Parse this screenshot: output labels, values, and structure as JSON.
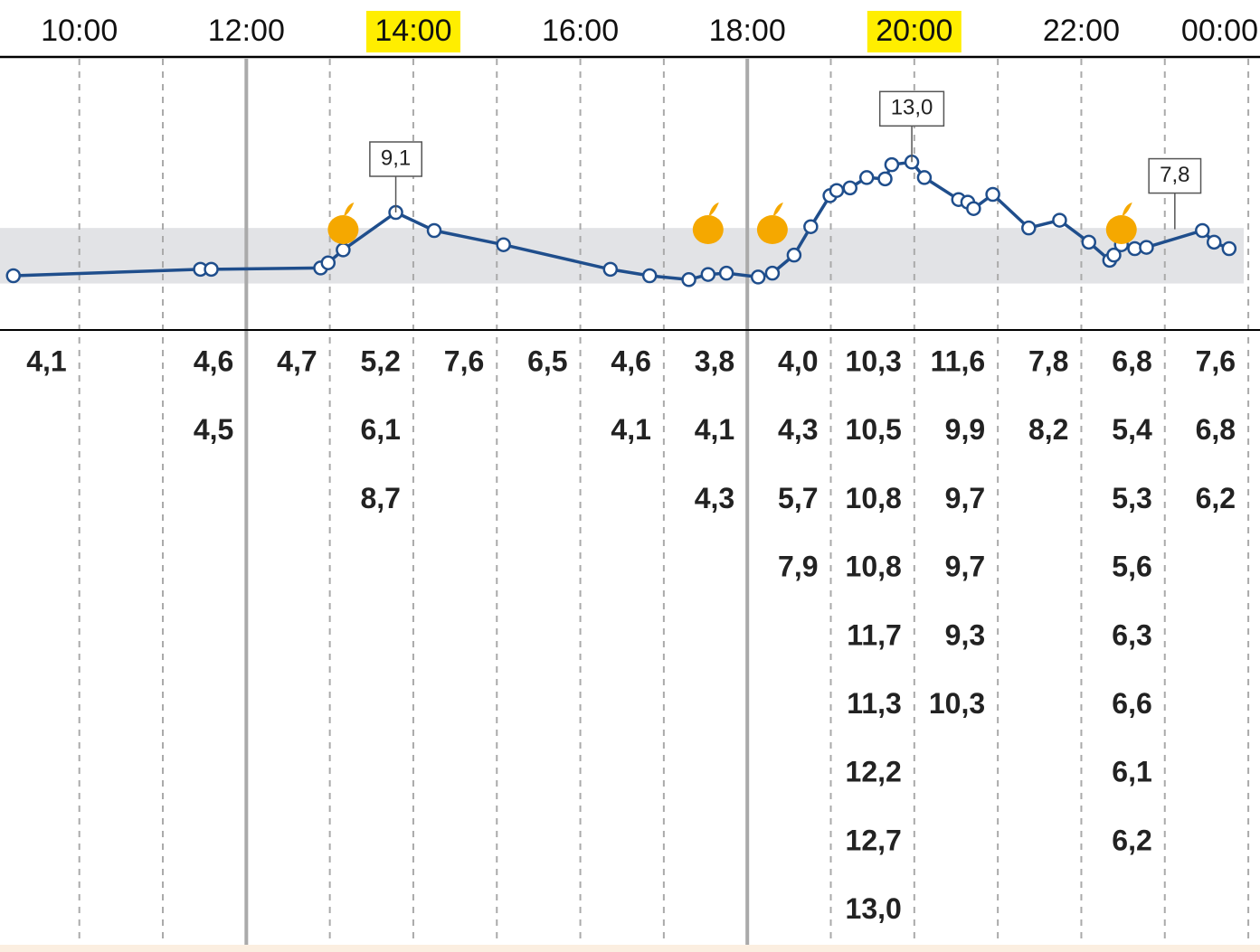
{
  "chart_data": {
    "type": "line",
    "xlim": [
      9.05,
      24.14
    ],
    "ylim": [
      0,
      21
    ],
    "xticks": [
      {
        "value": 10,
        "label": "10:00"
      },
      {
        "value": 12,
        "label": "12:00"
      },
      {
        "value": 14,
        "label": "14:00"
      },
      {
        "value": 16,
        "label": "16:00"
      },
      {
        "value": 18,
        "label": "18:00"
      },
      {
        "value": 20,
        "label": "20:00"
      },
      {
        "value": 22,
        "label": "22:00"
      },
      {
        "value": 24,
        "label": "00:00"
      }
    ],
    "minor_xticks": [
      11,
      13,
      15,
      17,
      19,
      21,
      23
    ],
    "solid_gridlines": [
      12,
      18
    ],
    "highlighted_xticks": [
      14,
      20
    ],
    "target_range": [
      3.6,
      7.9
    ],
    "series": [
      {
        "color": "#1f4e8c",
        "x": [
          9.21,
          11.45,
          11.58,
          12.89,
          12.98,
          13.16,
          13.79,
          14.25,
          15.08,
          16.36,
          16.83,
          17.3,
          17.53,
          17.75,
          18.13,
          18.3,
          18.56,
          18.76,
          18.99,
          19.07,
          19.23,
          19.43,
          19.65,
          19.73,
          19.97,
          20.12,
          20.53,
          20.64,
          20.71,
          20.94,
          21.37,
          21.74,
          22.09,
          22.34,
          22.39,
          22.48,
          22.64,
          22.78,
          23.45,
          23.59,
          23.77
        ],
        "values": [
          4.2,
          4.7,
          4.7,
          4.8,
          5.2,
          6.2,
          9.1,
          7.7,
          6.6,
          4.7,
          4.2,
          3.9,
          4.3,
          4.4,
          4.1,
          4.4,
          5.8,
          8.0,
          10.4,
          10.8,
          11.0,
          11.8,
          11.7,
          12.8,
          13.0,
          11.8,
          10.1,
          9.9,
          9.4,
          10.5,
          7.9,
          8.5,
          6.8,
          5.4,
          5.8,
          6.6,
          6.3,
          6.4,
          7.7,
          6.8,
          6.3
        ]
      }
    ],
    "annotations": [
      {
        "x": 13.79,
        "value": 9.1,
        "label": "9,1"
      },
      {
        "x": 19.97,
        "value": 13.0,
        "label": "13,0"
      },
      {
        "x": 23.12,
        "value": 7.8,
        "label": "7,8"
      }
    ],
    "meal_times": [
      13.16,
      17.53,
      18.3,
      22.48
    ],
    "meal_color": "#f5a800",
    "highlight_color": "#ffee00"
  },
  "table": {
    "columns": [
      {
        "hour": 9,
        "readings": [
          "4,1"
        ]
      },
      {
        "hour": 11,
        "readings": [
          "4,6",
          "4,5"
        ]
      },
      {
        "hour": 12,
        "readings": [
          "4,7"
        ]
      },
      {
        "hour": 13,
        "readings": [
          "5,2",
          "6,1",
          "8,7"
        ]
      },
      {
        "hour": 14,
        "readings": [
          "7,6"
        ]
      },
      {
        "hour": 15,
        "readings": [
          "6,5"
        ]
      },
      {
        "hour": 16,
        "readings": [
          "4,6",
          "4,1"
        ]
      },
      {
        "hour": 17,
        "readings": [
          "3,8",
          "4,1",
          "4,3"
        ]
      },
      {
        "hour": 18,
        "readings": [
          "4,0",
          "4,3",
          "5,7",
          "7,9"
        ]
      },
      {
        "hour": 19,
        "readings": [
          "10,3",
          "10,5",
          "10,8",
          "10,8",
          "11,7",
          "11,3",
          "12,2",
          "12,7",
          "13,0"
        ]
      },
      {
        "hour": 20,
        "readings": [
          "11,6",
          "9,9",
          "9,7",
          "9,7",
          "9,3",
          "10,3"
        ]
      },
      {
        "hour": 21,
        "readings": [
          "7,8",
          "8,2"
        ]
      },
      {
        "hour": 22,
        "readings": [
          "6,8",
          "5,4",
          "5,3",
          "5,6",
          "6,3",
          "6,6",
          "6,1",
          "6,2"
        ]
      },
      {
        "hour": 23,
        "readings": [
          "7,6",
          "6,8",
          "6,2"
        ]
      }
    ]
  }
}
